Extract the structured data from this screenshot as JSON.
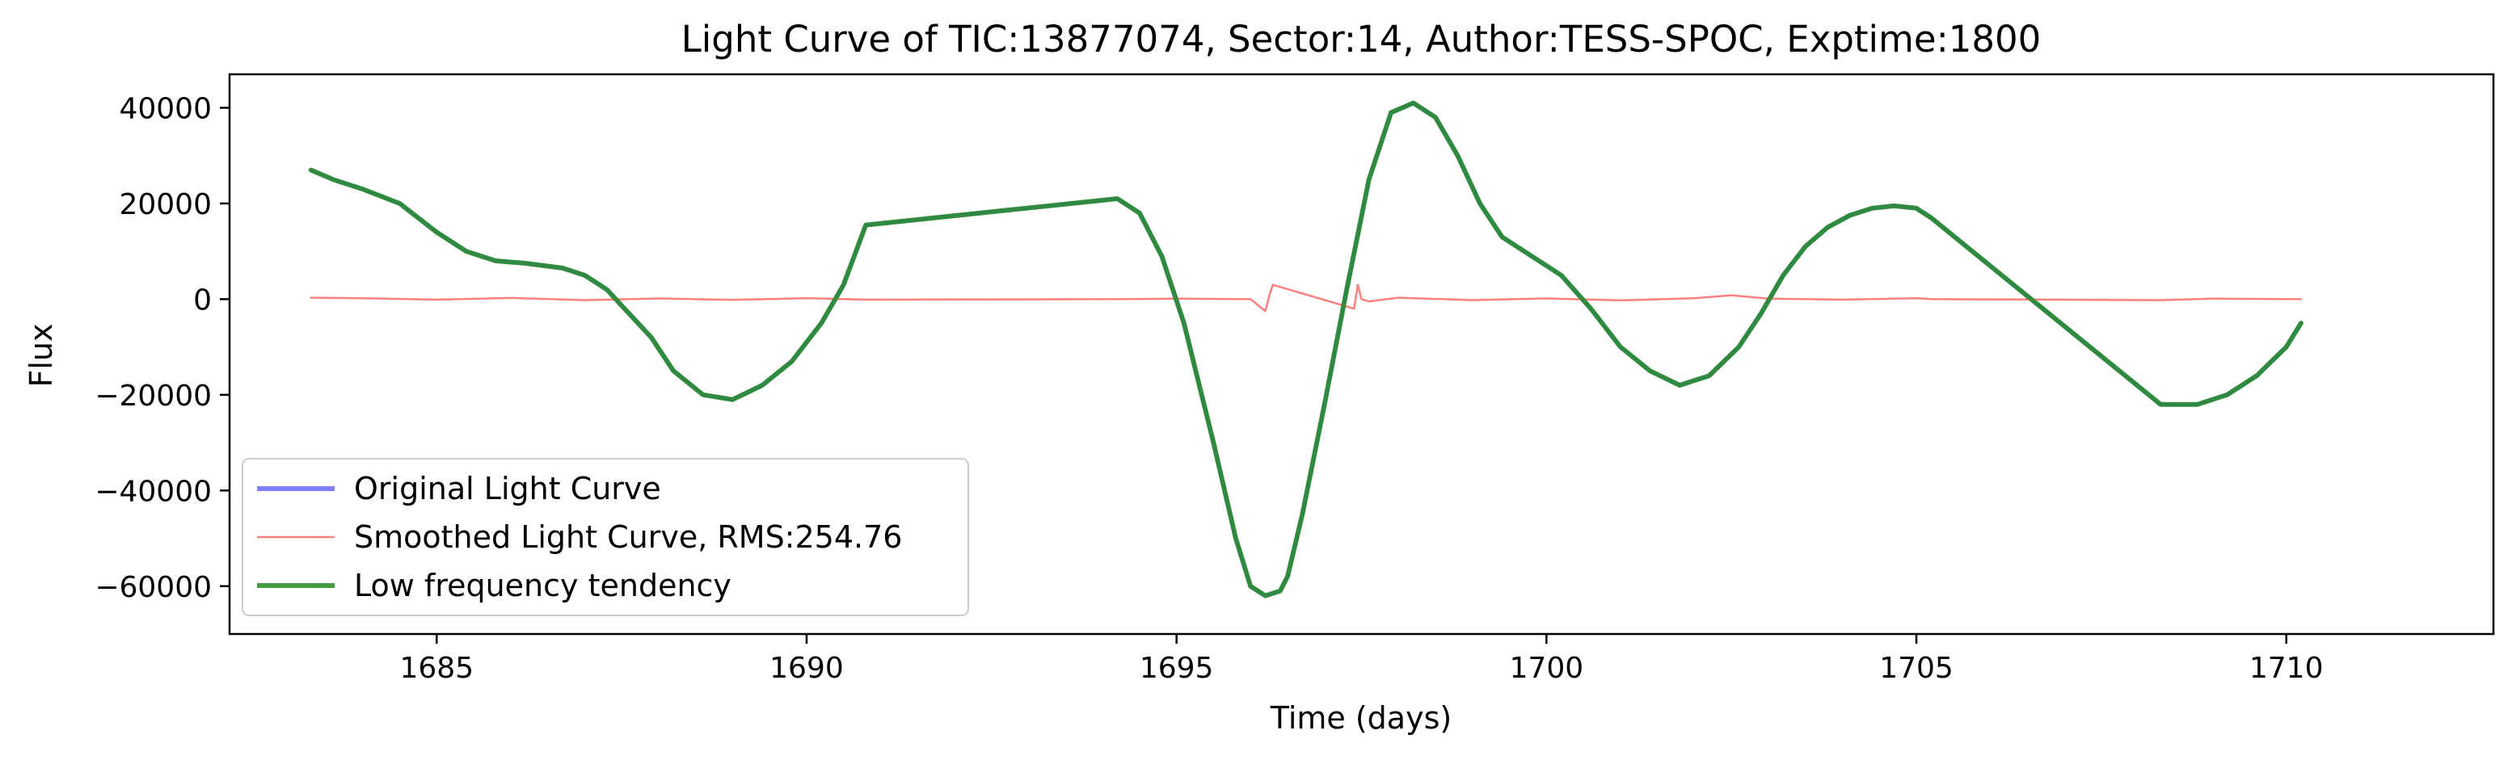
{
  "chart_data": {
    "type": "line",
    "title": "Light Curve of TIC:13877074, Sector:14, Author:TESS-SPOC, Exptime:1800",
    "xlabel": "Time (days)",
    "ylabel": "Flux",
    "xlim": [
      1682.2,
      1712.8
    ],
    "ylim": [
      -70000,
      47000
    ],
    "x_ticks": [
      1685,
      1690,
      1695,
      1700,
      1705,
      1710
    ],
    "y_ticks": [
      -60000,
      -40000,
      -20000,
      0,
      20000,
      40000
    ],
    "x_tick_labels": [
      "1685",
      "1690",
      "1695",
      "1700",
      "1705",
      "1710"
    ],
    "y_tick_labels": [
      "−60000",
      "−40000",
      "−20000",
      "0",
      "20000",
      "40000"
    ],
    "grid": false,
    "legend": {
      "placement": "lower-left",
      "entries": [
        "Original Light Curve",
        "Smoothed Light Curve, RMS:254.76",
        "Low frequency tendency"
      ]
    },
    "series": [
      {
        "name": "Original Light Curve",
        "color": "#7f7fff",
        "x": [
          1683.3,
          1683.6,
          1684.0,
          1684.5,
          1685.0,
          1685.4,
          1685.8,
          1686.2,
          1686.7,
          1687.0,
          1687.3,
          1687.6,
          1687.9,
          1688.2,
          1688.6,
          1689.0,
          1689.4,
          1689.8,
          1690.2,
          1690.5,
          1690.8,
          1694.2,
          1694.5,
          1694.8,
          1695.1,
          1695.5,
          1695.8,
          1696.0,
          1696.2,
          1696.4,
          1696.5,
          1696.7,
          1697.0,
          1697.3,
          1697.6,
          1697.9,
          1698.2,
          1698.5,
          1698.8,
          1699.1,
          1699.4,
          1699.8,
          1700.2,
          1700.6,
          1701.0,
          1701.4,
          1701.8,
          1702.2,
          1702.6,
          1702.9,
          1703.2,
          1703.5,
          1703.8,
          1704.1,
          1704.4,
          1704.7,
          1705.0,
          1705.2,
          1708.3,
          1708.8,
          1709.2,
          1709.6,
          1710.0,
          1710.2
        ],
        "values": [
          27000,
          25000,
          23000,
          20000,
          14000,
          10000,
          8000,
          7500,
          6500,
          5000,
          2000,
          -3000,
          -8000,
          -15000,
          -20000,
          -21000,
          -18000,
          -13000,
          -5000,
          3000,
          15500,
          21000,
          18000,
          9000,
          -5000,
          -30000,
          -50000,
          -60000,
          -62000,
          -61000,
          -58000,
          -45000,
          -22000,
          2000,
          25000,
          39000,
          41000,
          38000,
          30000,
          20000,
          13000,
          9000,
          5000,
          -2000,
          -10000,
          -15000,
          -18000,
          -16000,
          -10000,
          -3000,
          5000,
          11000,
          15000,
          17500,
          19000,
          19500,
          19000,
          17000,
          -22000,
          -22000,
          -20000,
          -16000,
          -10000,
          -5000
        ]
      },
      {
        "name": "Smoothed Light Curve, RMS:254.76",
        "color": "#ff7f7f",
        "x": [
          1683.3,
          1684.0,
          1685.0,
          1686.0,
          1687.0,
          1688.0,
          1689.0,
          1690.0,
          1690.8,
          1694.2,
          1695.0,
          1696.0,
          1696.2,
          1696.25,
          1696.3,
          1697.4,
          1697.45,
          1697.5,
          1697.6,
          1698.0,
          1699.0,
          1700.0,
          1701.0,
          1702.0,
          1702.5,
          1703.0,
          1704.0,
          1705.0,
          1705.2,
          1708.3,
          1709.0,
          1710.2
        ],
        "values": [
          300,
          200,
          -100,
          250,
          -200,
          150,
          -150,
          200,
          -100,
          0,
          100,
          0,
          -2500,
          500,
          3000,
          -2000,
          3000,
          0,
          -500,
          300,
          -200,
          150,
          -250,
          200,
          800,
          100,
          -100,
          200,
          0,
          -200,
          100,
          0
        ]
      },
      {
        "name": "Low frequency tendency",
        "color": "#228b22",
        "x": [
          1683.3,
          1683.6,
          1684.0,
          1684.5,
          1685.0,
          1685.4,
          1685.8,
          1686.2,
          1686.7,
          1687.0,
          1687.3,
          1687.6,
          1687.9,
          1688.2,
          1688.6,
          1689.0,
          1689.4,
          1689.8,
          1690.2,
          1690.5,
          1690.8,
          1694.2,
          1694.5,
          1694.8,
          1695.1,
          1695.5,
          1695.8,
          1696.0,
          1696.2,
          1696.4,
          1696.5,
          1696.7,
          1697.0,
          1697.3,
          1697.6,
          1697.9,
          1698.2,
          1698.5,
          1698.8,
          1699.1,
          1699.4,
          1699.8,
          1700.2,
          1700.6,
          1701.0,
          1701.4,
          1701.8,
          1702.2,
          1702.6,
          1702.9,
          1703.2,
          1703.5,
          1703.8,
          1704.1,
          1704.4,
          1704.7,
          1705.0,
          1705.2,
          1708.3,
          1708.8,
          1709.2,
          1709.6,
          1710.0,
          1710.2
        ],
        "values": [
          27000,
          25000,
          23000,
          20000,
          14000,
          10000,
          8000,
          7500,
          6500,
          5000,
          2000,
          -3000,
          -8000,
          -15000,
          -20000,
          -21000,
          -18000,
          -13000,
          -5000,
          3000,
          15500,
          21000,
          18000,
          9000,
          -5000,
          -30000,
          -50000,
          -60000,
          -62000,
          -61000,
          -58000,
          -45000,
          -22000,
          2000,
          25000,
          39000,
          41000,
          38000,
          30000,
          20000,
          13000,
          9000,
          5000,
          -2000,
          -10000,
          -15000,
          -18000,
          -16000,
          -10000,
          -3000,
          5000,
          11000,
          15000,
          17500,
          19000,
          19500,
          19000,
          17000,
          -22000,
          -22000,
          -20000,
          -16000,
          -10000,
          -5000
        ]
      }
    ]
  }
}
